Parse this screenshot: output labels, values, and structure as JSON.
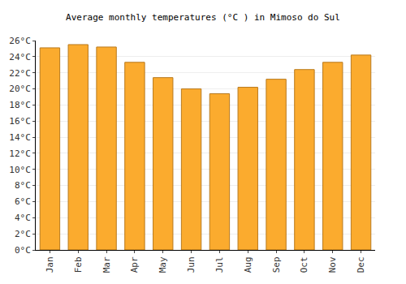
{
  "chart_data": {
    "type": "bar",
    "title": "Average monthly temperatures (°C ) in Mimoso do Sul",
    "categories": [
      "Jan",
      "Feb",
      "Mar",
      "Apr",
      "May",
      "Jun",
      "Jul",
      "Aug",
      "Sep",
      "Oct",
      "Nov",
      "Dec"
    ],
    "values": [
      25.1,
      25.5,
      25.2,
      23.3,
      21.4,
      20.0,
      19.4,
      20.2,
      21.2,
      22.4,
      23.3,
      24.2
    ],
    "color": "#fbab2e",
    "ylim": [
      0,
      26
    ],
    "yticks": [
      {
        "value": 0,
        "label": "0°C"
      },
      {
        "value": 2,
        "label": "2°C"
      },
      {
        "value": 4,
        "label": "4°C"
      },
      {
        "value": 6,
        "label": "6°C"
      },
      {
        "value": 8,
        "label": "8°C"
      },
      {
        "value": 10,
        "label": "10°C"
      },
      {
        "value": 12,
        "label": "12°C"
      },
      {
        "value": 14,
        "label": "14°C"
      },
      {
        "value": 16,
        "label": "16°C"
      },
      {
        "value": 18,
        "label": "18°C"
      },
      {
        "value": 20,
        "label": "20°C"
      },
      {
        "value": 22,
        "label": "22°C"
      },
      {
        "value": 24,
        "label": "24°C"
      },
      {
        "value": 26,
        "label": "26°C"
      }
    ],
    "grid": true
  }
}
